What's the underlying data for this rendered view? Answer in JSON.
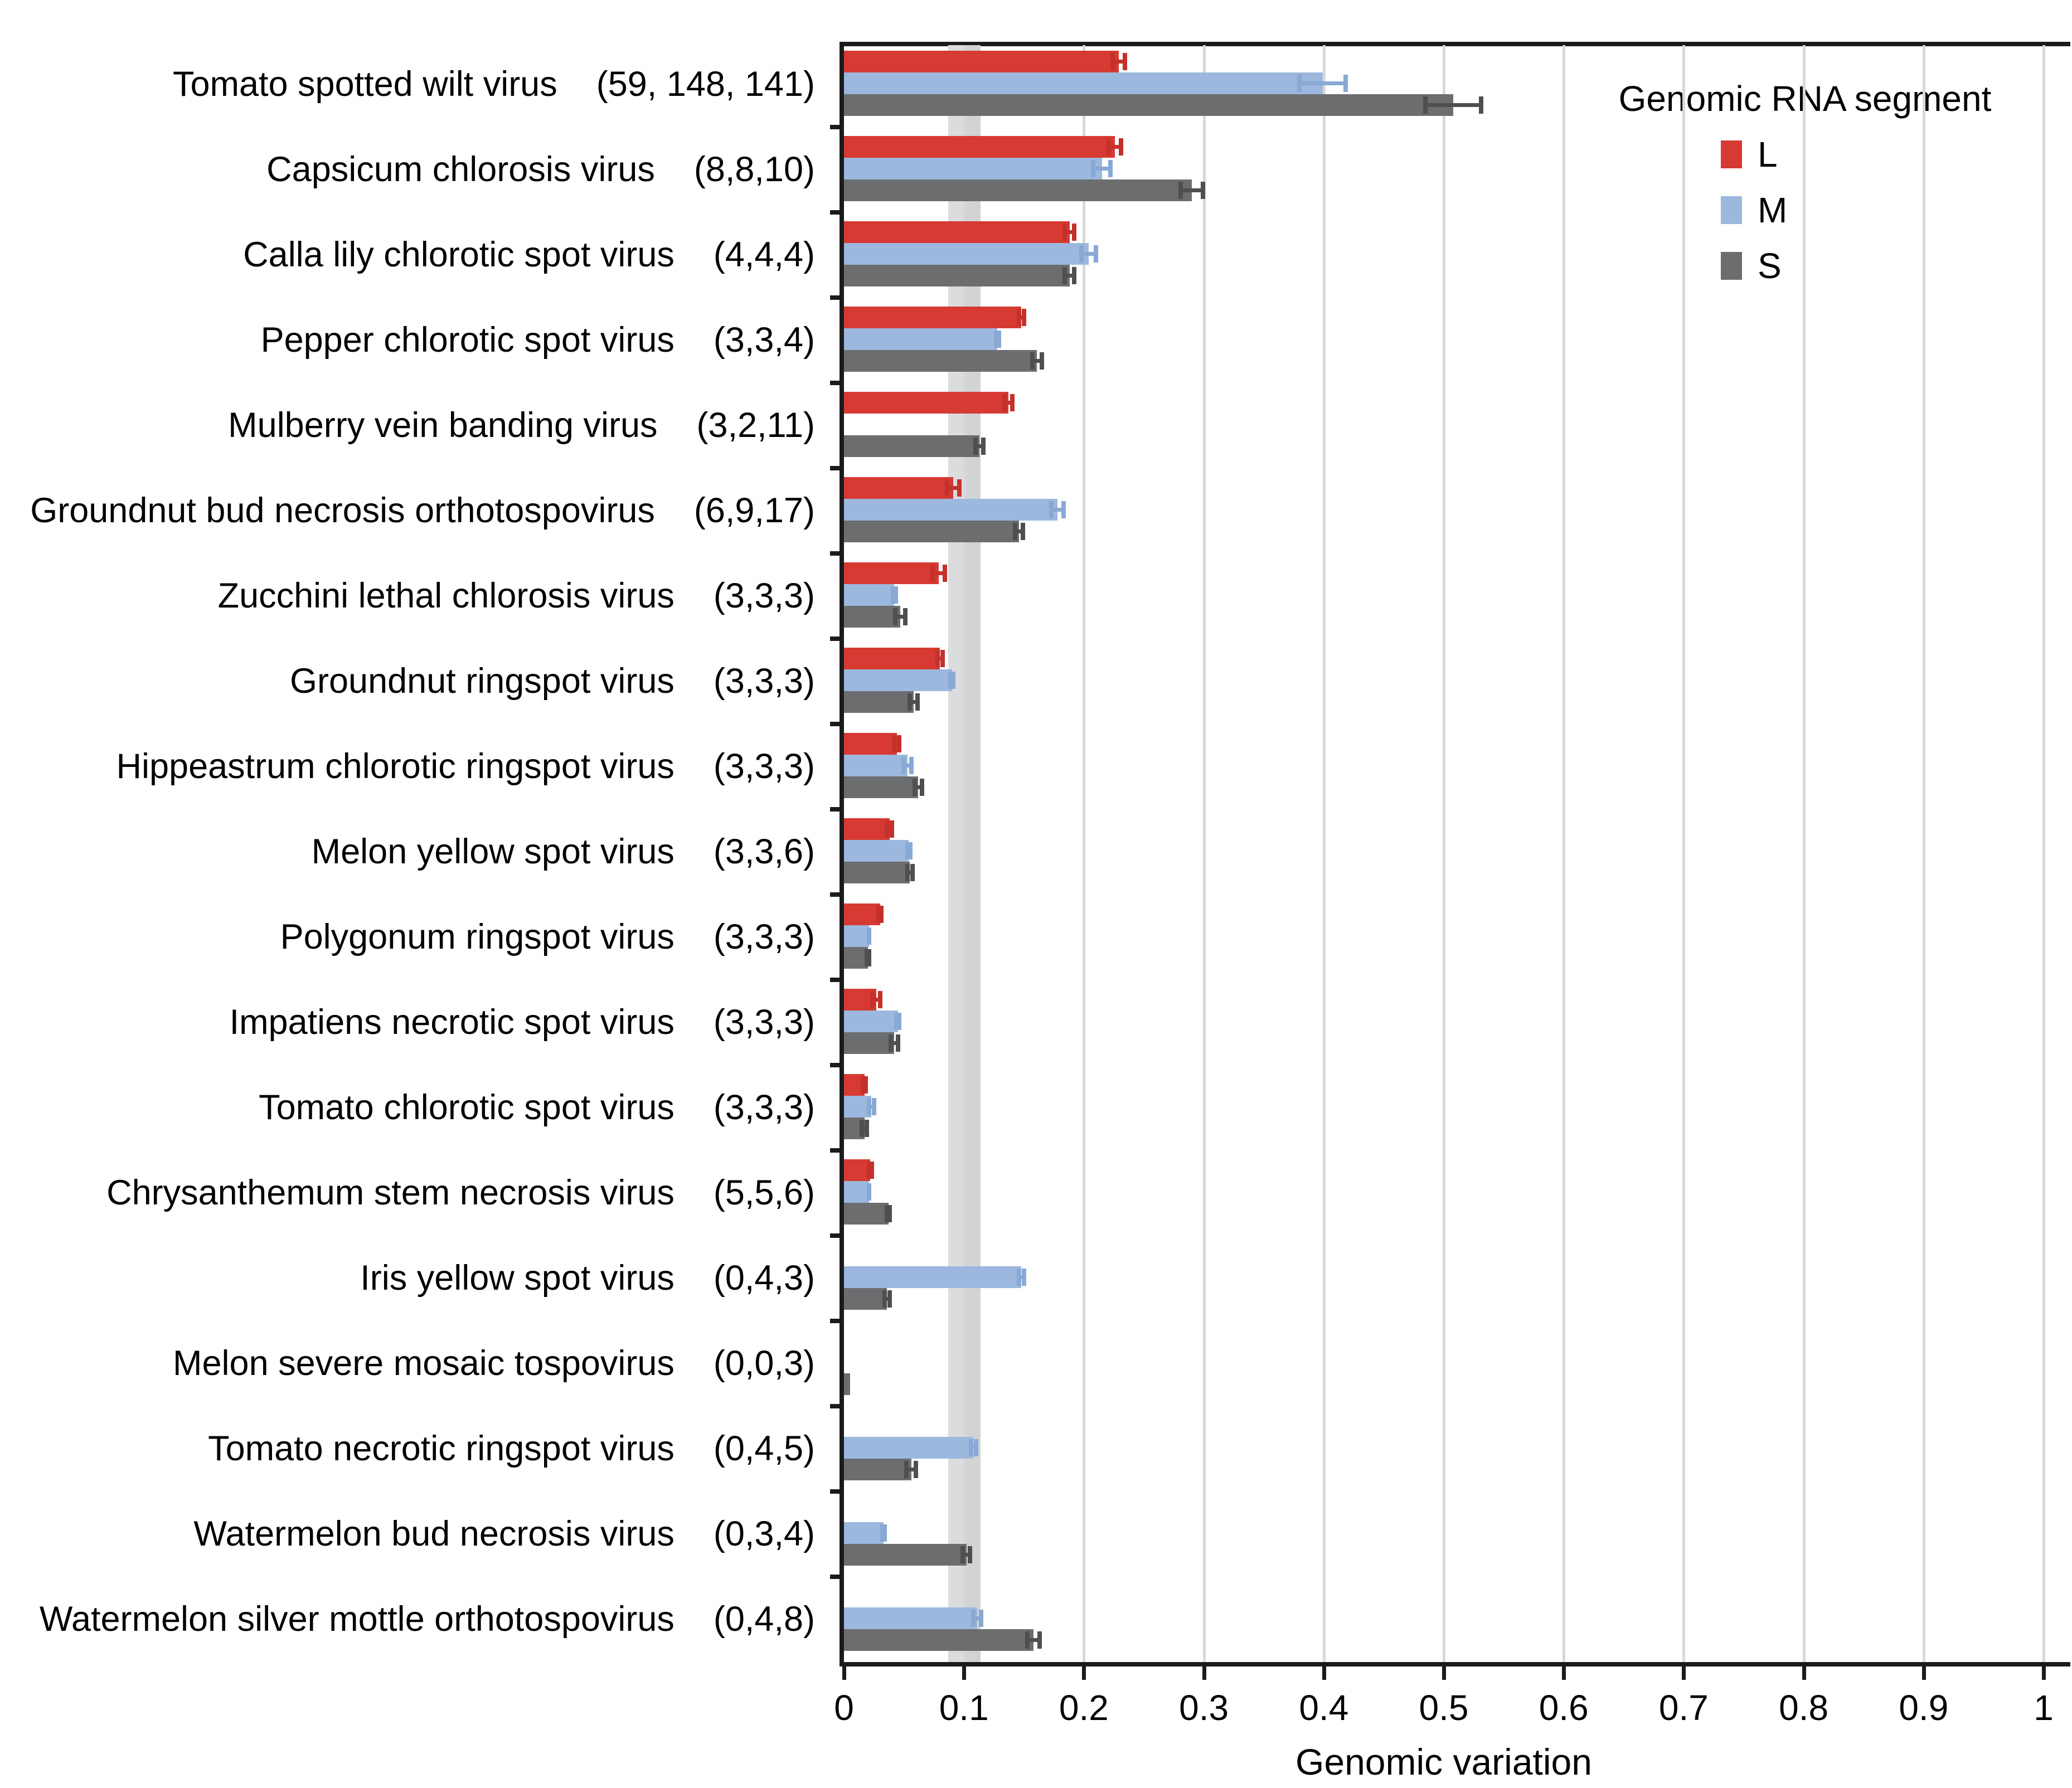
{
  "chart_data": {
    "type": "bar",
    "orientation": "horizontal",
    "title": "",
    "xlabel": "Genomic variation",
    "ylabel": "",
    "xlim": [
      0,
      1
    ],
    "grid": true,
    "xticks": [
      {
        "value": 0,
        "label": "0"
      },
      {
        "value": 0.1,
        "label": "0.1"
      },
      {
        "value": 0.2,
        "label": "0.2"
      },
      {
        "value": 0.3,
        "label": "0.3"
      },
      {
        "value": 0.4,
        "label": "0.4"
      },
      {
        "value": 0.5,
        "label": "0.5"
      },
      {
        "value": 0.6,
        "label": "0.6"
      },
      {
        "value": 0.7,
        "label": "0.7"
      },
      {
        "value": 0.8,
        "label": "0.8"
      },
      {
        "value": 0.9,
        "label": "0.9"
      },
      {
        "value": 1,
        "label": "1"
      }
    ],
    "legend": {
      "title": "Genomic RNA segment",
      "position": "top-right",
      "entries": [
        {
          "id": "L",
          "label": "L",
          "color": "#d63a32",
          "error_color": "#c4312b"
        },
        {
          "id": "M",
          "label": "M",
          "color": "#9cb8de",
          "error_color": "#88a9d4"
        },
        {
          "id": "S",
          "label": "S",
          "color": "#6c6d6f",
          "error_color": "#4e4f51"
        }
      ]
    },
    "reference_band": {
      "from": 0.087,
      "to": 0.114,
      "split": 0.1,
      "color_left": "#dbdcdd",
      "color_right": "#d1d3d5"
    },
    "gridline_color": "#d9d9d9",
    "rows": [
      {
        "virus": "Tomato spotted wilt virus",
        "counts_label": "(59, 148, 141)",
        "segments": {
          "L": {
            "value": 0.229,
            "error": 0.007
          },
          "M": {
            "value": 0.399,
            "error": 0.021
          },
          "S": {
            "value": 0.508,
            "error": 0.025
          }
        }
      },
      {
        "virus": "Capsicum chlorosis virus",
        "counts_label": "(8,8,10)",
        "segments": {
          "L": {
            "value": 0.226,
            "error": 0.007
          },
          "M": {
            "value": 0.215,
            "error": 0.009
          },
          "S": {
            "value": 0.29,
            "error": 0.011
          }
        }
      },
      {
        "virus": "Calla lily chlorotic spot virus",
        "counts_label": "(4,4,4)",
        "segments": {
          "L": {
            "value": 0.188,
            "error": 0.006
          },
          "M": {
            "value": 0.204,
            "error": 0.008
          },
          "S": {
            "value": 0.188,
            "error": 0.006
          }
        }
      },
      {
        "virus": "Pepper chlorotic spot virus",
        "counts_label": "(3,3,4)",
        "segments": {
          "L": {
            "value": 0.148,
            "error": 0.004
          },
          "M": {
            "value": 0.128,
            "error": 0.003
          },
          "S": {
            "value": 0.161,
            "error": 0.006
          }
        }
      },
      {
        "virus": "Mulberry vein banding virus",
        "counts_label": "(3,2,11)",
        "segments": {
          "L": {
            "value": 0.137,
            "error": 0.005
          },
          "M": null,
          "S": {
            "value": 0.113,
            "error": 0.005
          }
        }
      },
      {
        "virus": "Groundnut bud necrosis orthotospovirus",
        "counts_label": "(6,9,17)",
        "segments": {
          "L": {
            "value": 0.091,
            "error": 0.007
          },
          "M": {
            "value": 0.178,
            "error": 0.007
          },
          "S": {
            "value": 0.146,
            "error": 0.005
          }
        }
      },
      {
        "virus": "Zucchini lethal chlorosis virus",
        "counts_label": "(3,3,3)",
        "segments": {
          "L": {
            "value": 0.079,
            "error": 0.007
          },
          "M": {
            "value": 0.042,
            "error": 0.003
          },
          "S": {
            "value": 0.047,
            "error": 0.006
          }
        }
      },
      {
        "virus": "Groundnut ringspot virus",
        "counts_label": "(3,3,3)",
        "segments": {
          "L": {
            "value": 0.08,
            "error": 0.004
          },
          "M": {
            "value": 0.09,
            "error": 0.003
          },
          "S": {
            "value": 0.058,
            "error": 0.005
          }
        }
      },
      {
        "virus": "Hippeastrum chlorotic ringspot virus",
        "counts_label": "(3,3,3)",
        "segments": {
          "L": {
            "value": 0.044,
            "error": 0.004
          },
          "M": {
            "value": 0.053,
            "error": 0.005
          },
          "S": {
            "value": 0.062,
            "error": 0.005
          }
        }
      },
      {
        "virus": "Melon yellow spot virus",
        "counts_label": "(3,3,6)",
        "segments": {
          "L": {
            "value": 0.038,
            "error": 0.004
          },
          "M": {
            "value": 0.054,
            "error": 0.003
          },
          "S": {
            "value": 0.055,
            "error": 0.004
          }
        }
      },
      {
        "virus": "Polygonum ringspot virus",
        "counts_label": "(3,3,3)",
        "segments": {
          "L": {
            "value": 0.03,
            "error": 0.003
          },
          "M": {
            "value": 0.021,
            "error": 0.002
          },
          "S": {
            "value": 0.02,
            "error": 0.003
          }
        }
      },
      {
        "virus": "Impatiens necrotic spot virus",
        "counts_label": "(3,3,3)",
        "segments": {
          "L": {
            "value": 0.027,
            "error": 0.005
          },
          "M": {
            "value": 0.045,
            "error": 0.003
          },
          "S": {
            "value": 0.042,
            "error": 0.005
          }
        }
      },
      {
        "virus": "Tomato chlorotic spot virus",
        "counts_label": "(3,3,3)",
        "segments": {
          "L": {
            "value": 0.017,
            "error": 0.003
          },
          "M": {
            "value": 0.023,
            "error": 0.004
          },
          "S": {
            "value": 0.017,
            "error": 0.004
          }
        }
      },
      {
        "virus": "Chrysanthemum stem necrosis virus",
        "counts_label": "(5,5,6)",
        "segments": {
          "L": {
            "value": 0.022,
            "error": 0.003
          },
          "M": {
            "value": 0.021,
            "error": 0.002
          },
          "S": {
            "value": 0.037,
            "error": 0.003
          }
        }
      },
      {
        "virus": "Iris yellow spot virus",
        "counts_label": "(0,4,3)",
        "segments": {
          "L": null,
          "M": {
            "value": 0.148,
            "error": 0.004
          },
          "S": {
            "value": 0.036,
            "error": 0.004
          }
        }
      },
      {
        "virus": "Melon severe mosaic tospovirus",
        "counts_label": "(0,0,3)",
        "segments": {
          "L": null,
          "M": null,
          "S": {
            "value": 0.005,
            "error": 0
          }
        }
      },
      {
        "virus": "Tomato necrotic ringspot virus",
        "counts_label": "(0,4,5)",
        "segments": {
          "L": null,
          "M": {
            "value": 0.108,
            "error": 0.004
          },
          "S": {
            "value": 0.056,
            "error": 0.006
          }
        }
      },
      {
        "virus": "Watermelon bud necrosis virus",
        "counts_label": "(0,3,4)",
        "segments": {
          "L": null,
          "M": {
            "value": 0.033,
            "error": 0.003
          },
          "S": {
            "value": 0.102,
            "error": 0.005
          }
        }
      },
      {
        "virus": "Watermelon silver mottle orthotospovirus",
        "counts_label": "(0,4,8)",
        "segments": {
          "L": null,
          "M": {
            "value": 0.111,
            "error": 0.005
          },
          "S": {
            "value": 0.158,
            "error": 0.007
          }
        }
      }
    ]
  }
}
